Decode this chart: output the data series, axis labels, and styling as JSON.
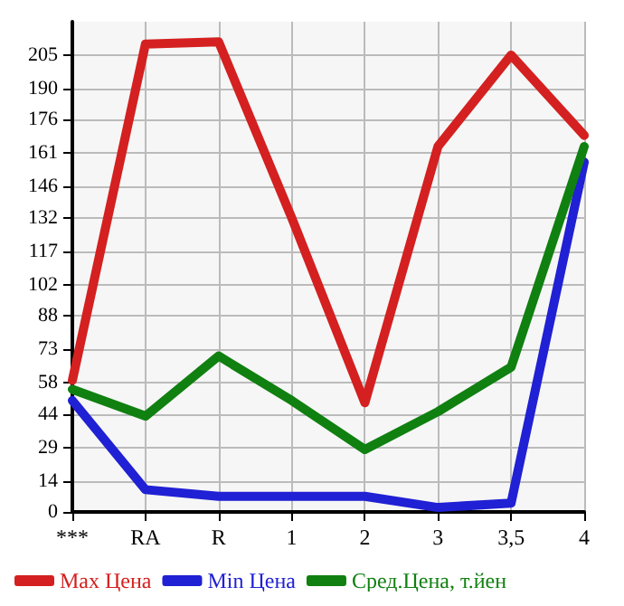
{
  "chart_data": {
    "type": "line",
    "categories": [
      "***",
      "RA",
      "R",
      "1",
      "2",
      "3",
      "3,5",
      "4"
    ],
    "series": [
      {
        "name": "Max Цена",
        "color": "#d42020",
        "values": [
          59,
          210,
          211,
          132,
          49,
          164,
          205,
          169
        ]
      },
      {
        "name": "Min Цена",
        "color": "#2020d4",
        "values": [
          50,
          10,
          7,
          7,
          7,
          2,
          4,
          157
        ]
      },
      {
        "name": "Сред.Цена, т.йен",
        "color": "#108010",
        "values": [
          55,
          43,
          70,
          50,
          28,
          45,
          65,
          164
        ]
      }
    ],
    "ylim": [
      0,
      220
    ],
    "yticks": [
      0,
      14,
      29,
      44,
      58,
      73,
      88,
      102,
      117,
      132,
      146,
      161,
      176,
      190,
      205
    ],
    "grid": true,
    "legend": "bottom",
    "marker": "none",
    "line_style": "solid"
  }
}
